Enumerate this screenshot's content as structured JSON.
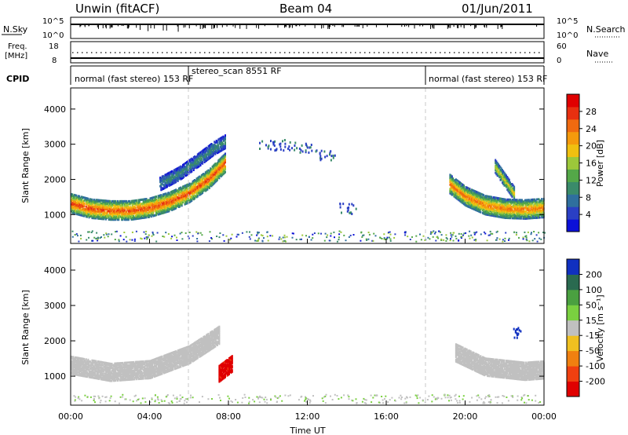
{
  "header": {
    "station": "Unwin (fitACF)",
    "beam": "Beam 04",
    "date": "01/Jun/2011"
  },
  "panels": {
    "nsky": {
      "label": "N.Sky",
      "ticks": [
        "10^5",
        "10^0"
      ]
    },
    "nsearch": {
      "label": "N.Search",
      "ticks": [
        "10^5",
        "10^0"
      ]
    },
    "freq": {
      "label_line1": "Freq.",
      "label_line2": "[MHz]",
      "ticks": [
        "18",
        "8"
      ]
    },
    "nave": {
      "label": "Nave",
      "ticks": [
        "60",
        "0"
      ]
    },
    "cpid": {
      "label": "CPID",
      "segments": [
        {
          "text": "normal (fast stereo) 153 RF",
          "start": "00:00",
          "end": "06:00"
        },
        {
          "text": "stereo_scan 8551 RF",
          "start": "06:00",
          "end": "18:00"
        },
        {
          "text": "normal (fast stereo) 153 RF",
          "start": "18:00",
          "end": "24:00"
        }
      ]
    }
  },
  "colorbars": {
    "power": {
      "title": "Power [dB]",
      "ticks": [
        "28",
        "24",
        "20",
        "16",
        "12",
        "8",
        "4"
      ],
      "colors": [
        "#0b10d8",
        "#2a3fc4",
        "#2f6f9e",
        "#3a8b6a",
        "#54a848",
        "#9cc83a",
        "#f0c010",
        "#f59a0c",
        "#f06a10",
        "#e83010",
        "#e00000"
      ]
    },
    "velocity": {
      "title": "Velocity [m s⁻¹]",
      "ticks": [
        "200",
        "100",
        "50",
        "15",
        "-15",
        "-50",
        "-100",
        "-200"
      ],
      "colors": [
        "#1030c0",
        "#2a6a50",
        "#4aa040",
        "#7ad040",
        "#c0c0c0",
        "#f0c020",
        "#f08010",
        "#f04010",
        "#e00000"
      ]
    }
  },
  "chart_data": [
    {
      "type": "heatmap",
      "title": "Power",
      "ylabel": "Slant Range [km]",
      "xlabel": "",
      "x_range_hours": [
        0,
        24
      ],
      "ylim": [
        180,
        4600
      ],
      "y_ticks": [
        1000,
        2000,
        3000,
        4000
      ],
      "grid": false,
      "colorbar_range_dB": [
        0,
        32
      ],
      "features": [
        {
          "name": "main band",
          "x_hours": [
            0,
            1,
            2,
            3,
            4,
            5,
            6,
            7,
            7.8
          ],
          "range_km": [
            1350,
            1200,
            1150,
            1150,
            1230,
            1400,
            1650,
            2050,
            2500
          ],
          "power_dB": 26
        },
        {
          "name": "upper arc",
          "x_hours": [
            4.5,
            5.5,
            6.5,
            7.2,
            7.8
          ],
          "range_km": [
            1900,
            2200,
            2600,
            2900,
            3100
          ],
          "power_dB": 10
        },
        {
          "name": "evening band",
          "x_hours": [
            19.2,
            20,
            21,
            22,
            23,
            24
          ],
          "range_km": [
            1900,
            1550,
            1300,
            1200,
            1180,
            1220
          ],
          "power_dB": 24
        },
        {
          "name": "arc",
          "x_hours": [
            21.5,
            22.5
          ],
          "range_km": [
            2400,
            1600
          ],
          "power_dB": 18
        },
        {
          "name": "scattered echoes",
          "x_hours": [
            10,
            11,
            12,
            13,
            14
          ],
          "range_km": [
            3000,
            3000,
            2900,
            2700,
            1200
          ],
          "power_dB": 8
        }
      ]
    },
    {
      "type": "heatmap",
      "title": "Velocity",
      "ylabel": "Slant Range [km]",
      "xlabel": "Time UT",
      "x_range_hours": [
        0,
        24
      ],
      "x_ticks": [
        "00:00",
        "04:00",
        "08:00",
        "12:00",
        "16:00",
        "20:00",
        "00:00"
      ],
      "ylim": [
        180,
        4600
      ],
      "y_ticks": [
        1000,
        2000,
        3000,
        4000
      ],
      "grid": false,
      "colorbar_range_ms": [
        -250,
        250
      ],
      "features": [
        {
          "name": "main band",
          "x_hours": [
            0,
            2,
            4,
            6,
            7.5
          ],
          "range_km": [
            1350,
            1150,
            1230,
            1650,
            2200
          ],
          "velocity_ms": 0
        },
        {
          "name": "red patch",
          "x_hours": [
            7.5,
            8.2
          ],
          "range_km": [
            1100,
            1400
          ],
          "velocity_ms": -220
        },
        {
          "name": "evening band",
          "x_hours": [
            19.5,
            21,
            23,
            24
          ],
          "range_km": [
            1700,
            1300,
            1180,
            1220
          ],
          "velocity_ms": 0
        },
        {
          "name": "blue spot",
          "x_hours": [
            22.6
          ],
          "range_km": [
            2250
          ],
          "velocity_ms": 200
        }
      ]
    }
  ]
}
